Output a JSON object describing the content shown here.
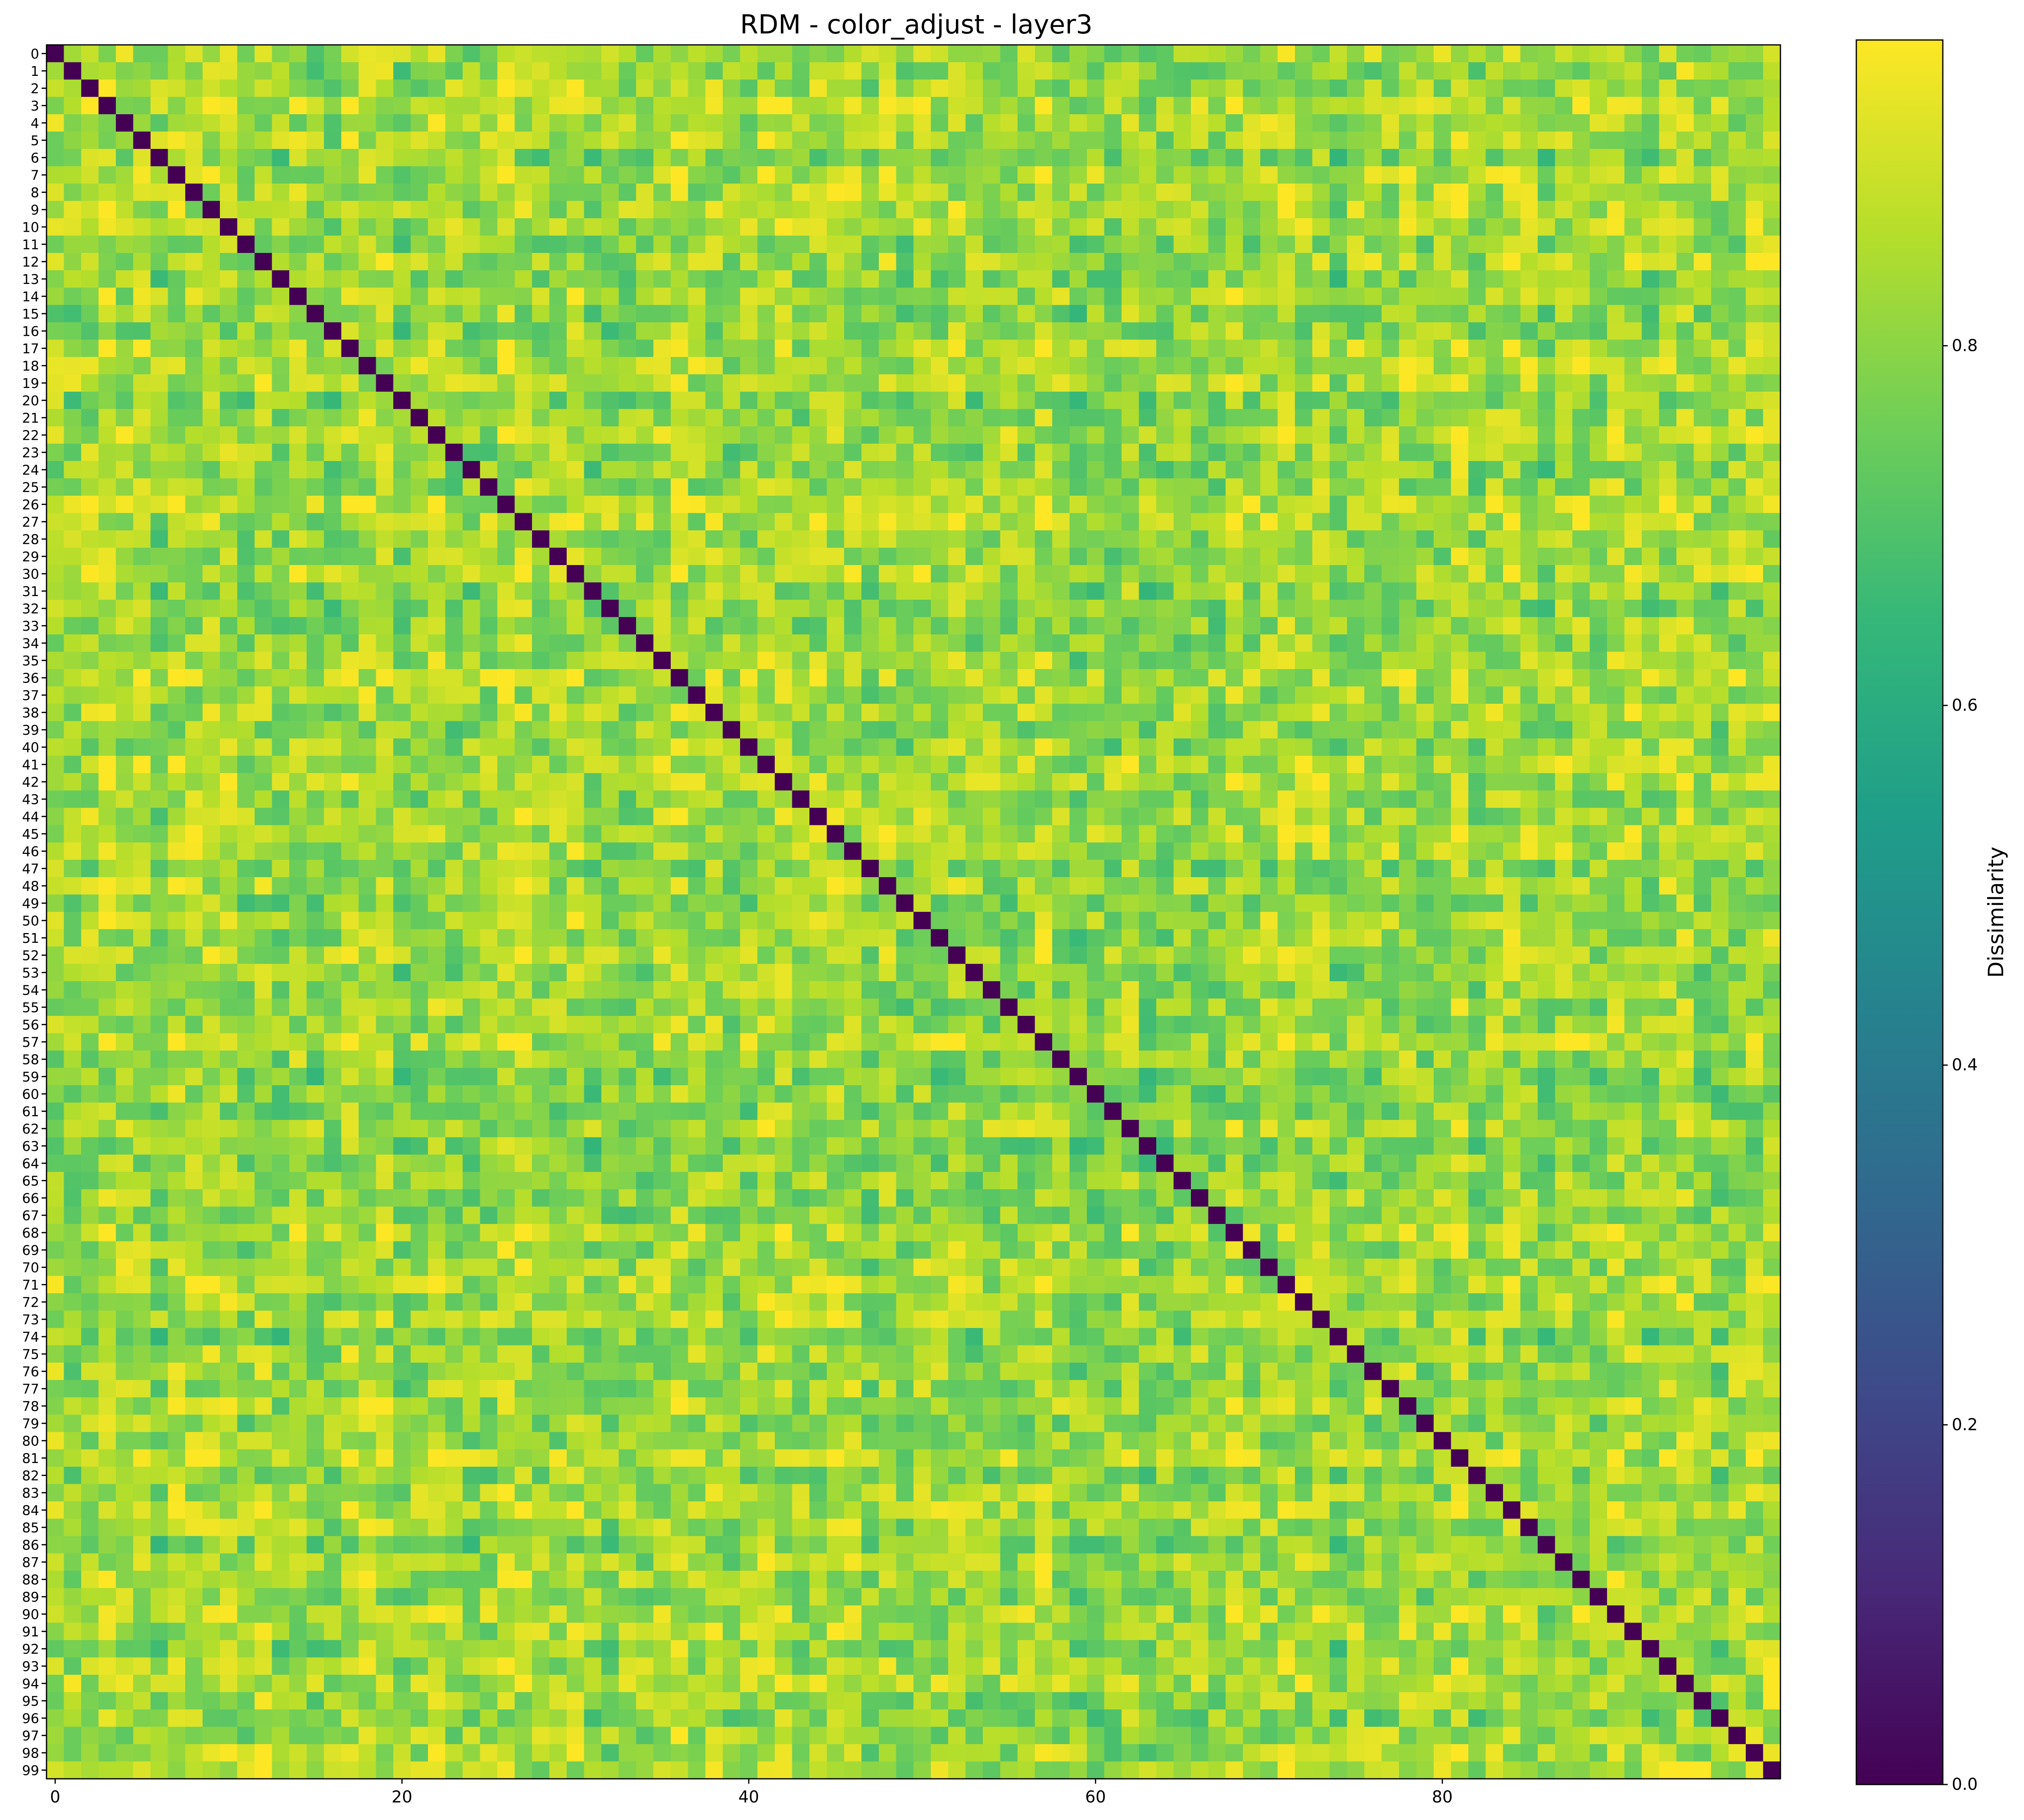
{
  "chart_data": {
    "type": "heatmap",
    "title": "RDM - color_adjust - layer3",
    "xlabel": "",
    "ylabel": "",
    "rows": 100,
    "cols": 100,
    "x_ticks": [
      0,
      20,
      40,
      60,
      80
    ],
    "y_ticks": [
      0,
      1,
      2,
      3,
      4,
      5,
      6,
      7,
      8,
      9,
      10,
      11,
      12,
      13,
      14,
      15,
      16,
      17,
      18,
      19,
      20,
      21,
      22,
      23,
      24,
      25,
      26,
      27,
      28,
      29,
      30,
      31,
      32,
      33,
      34,
      35,
      36,
      37,
      38,
      39,
      40,
      41,
      42,
      43,
      44,
      45,
      46,
      47,
      48,
      49,
      50,
      51,
      52,
      53,
      54,
      55,
      56,
      57,
      58,
      59,
      60,
      61,
      62,
      63,
      64,
      65,
      66,
      67,
      68,
      69,
      70,
      71,
      72,
      73,
      74,
      75,
      76,
      77,
      78,
      79,
      80,
      81,
      82,
      83,
      84,
      85,
      86,
      87,
      88,
      89,
      90,
      91,
      92,
      93,
      94,
      95,
      96,
      97,
      98,
      99
    ],
    "colormap": "viridis",
    "vmin": 0.0,
    "vmax": 0.97,
    "diagonal_value": 0.0,
    "off_diagonal_typical_range": [
      0.6,
      0.97
    ],
    "off_diagonal_mean": 0.82,
    "colorbar": {
      "label": "Dissimilarity",
      "ticks": [
        "0.0",
        "0.2",
        "0.4",
        "0.6",
        "0.8"
      ],
      "tick_values": [
        0.0,
        0.2,
        0.4,
        0.6,
        0.8
      ]
    },
    "grid": false,
    "legend": "none"
  },
  "colors": {
    "viridis_stops": [
      "#440154",
      "#482878",
      "#3e4989",
      "#31688e",
      "#26828e",
      "#1f9e89",
      "#35b779",
      "#6ece58",
      "#b5de2b",
      "#fde725"
    ]
  }
}
